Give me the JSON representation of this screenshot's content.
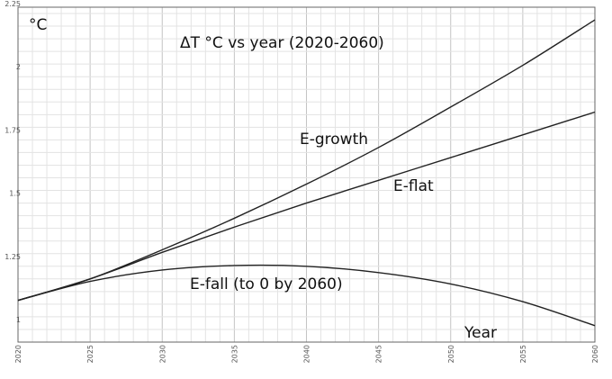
{
  "chart_data": {
    "type": "line",
    "title": "ΔT °C vs year (2020-2060)",
    "xlabel": "Year",
    "ylabel": "°C",
    "xlim": [
      2020,
      2060
    ],
    "ylim": [
      0.925,
      2.25
    ],
    "x_ticks": [
      "2020",
      "2025",
      "2030",
      "2035",
      "2040",
      "2045",
      "2050",
      "2055",
      "2060"
    ],
    "y_ticks": [
      "1",
      "1.25",
      "1.5",
      "1.75",
      "2",
      "2.25"
    ],
    "grid": true,
    "legend": "none (series labeled inline)",
    "x": [
      2020,
      2025,
      2030,
      2035,
      2040,
      2045,
      2050,
      2055,
      2060
    ],
    "series": [
      {
        "name": "E-growth",
        "values": [
          1.09,
          1.175,
          1.29,
          1.415,
          1.55,
          1.695,
          1.855,
          2.02,
          2.2
        ]
      },
      {
        "name": "E-flat",
        "values": [
          1.09,
          1.175,
          1.28,
          1.38,
          1.475,
          1.565,
          1.655,
          1.745,
          1.835
        ]
      },
      {
        "name": "E-fall (to 0 by 2060)",
        "values": [
          1.09,
          1.165,
          1.21,
          1.228,
          1.225,
          1.2,
          1.155,
          1.085,
          0.99
        ]
      }
    ]
  },
  "colors": {
    "line": "#222222",
    "grid_minor": "#e3e3e3",
    "grid_major": "#c4c4c4",
    "axis": "#666666"
  }
}
